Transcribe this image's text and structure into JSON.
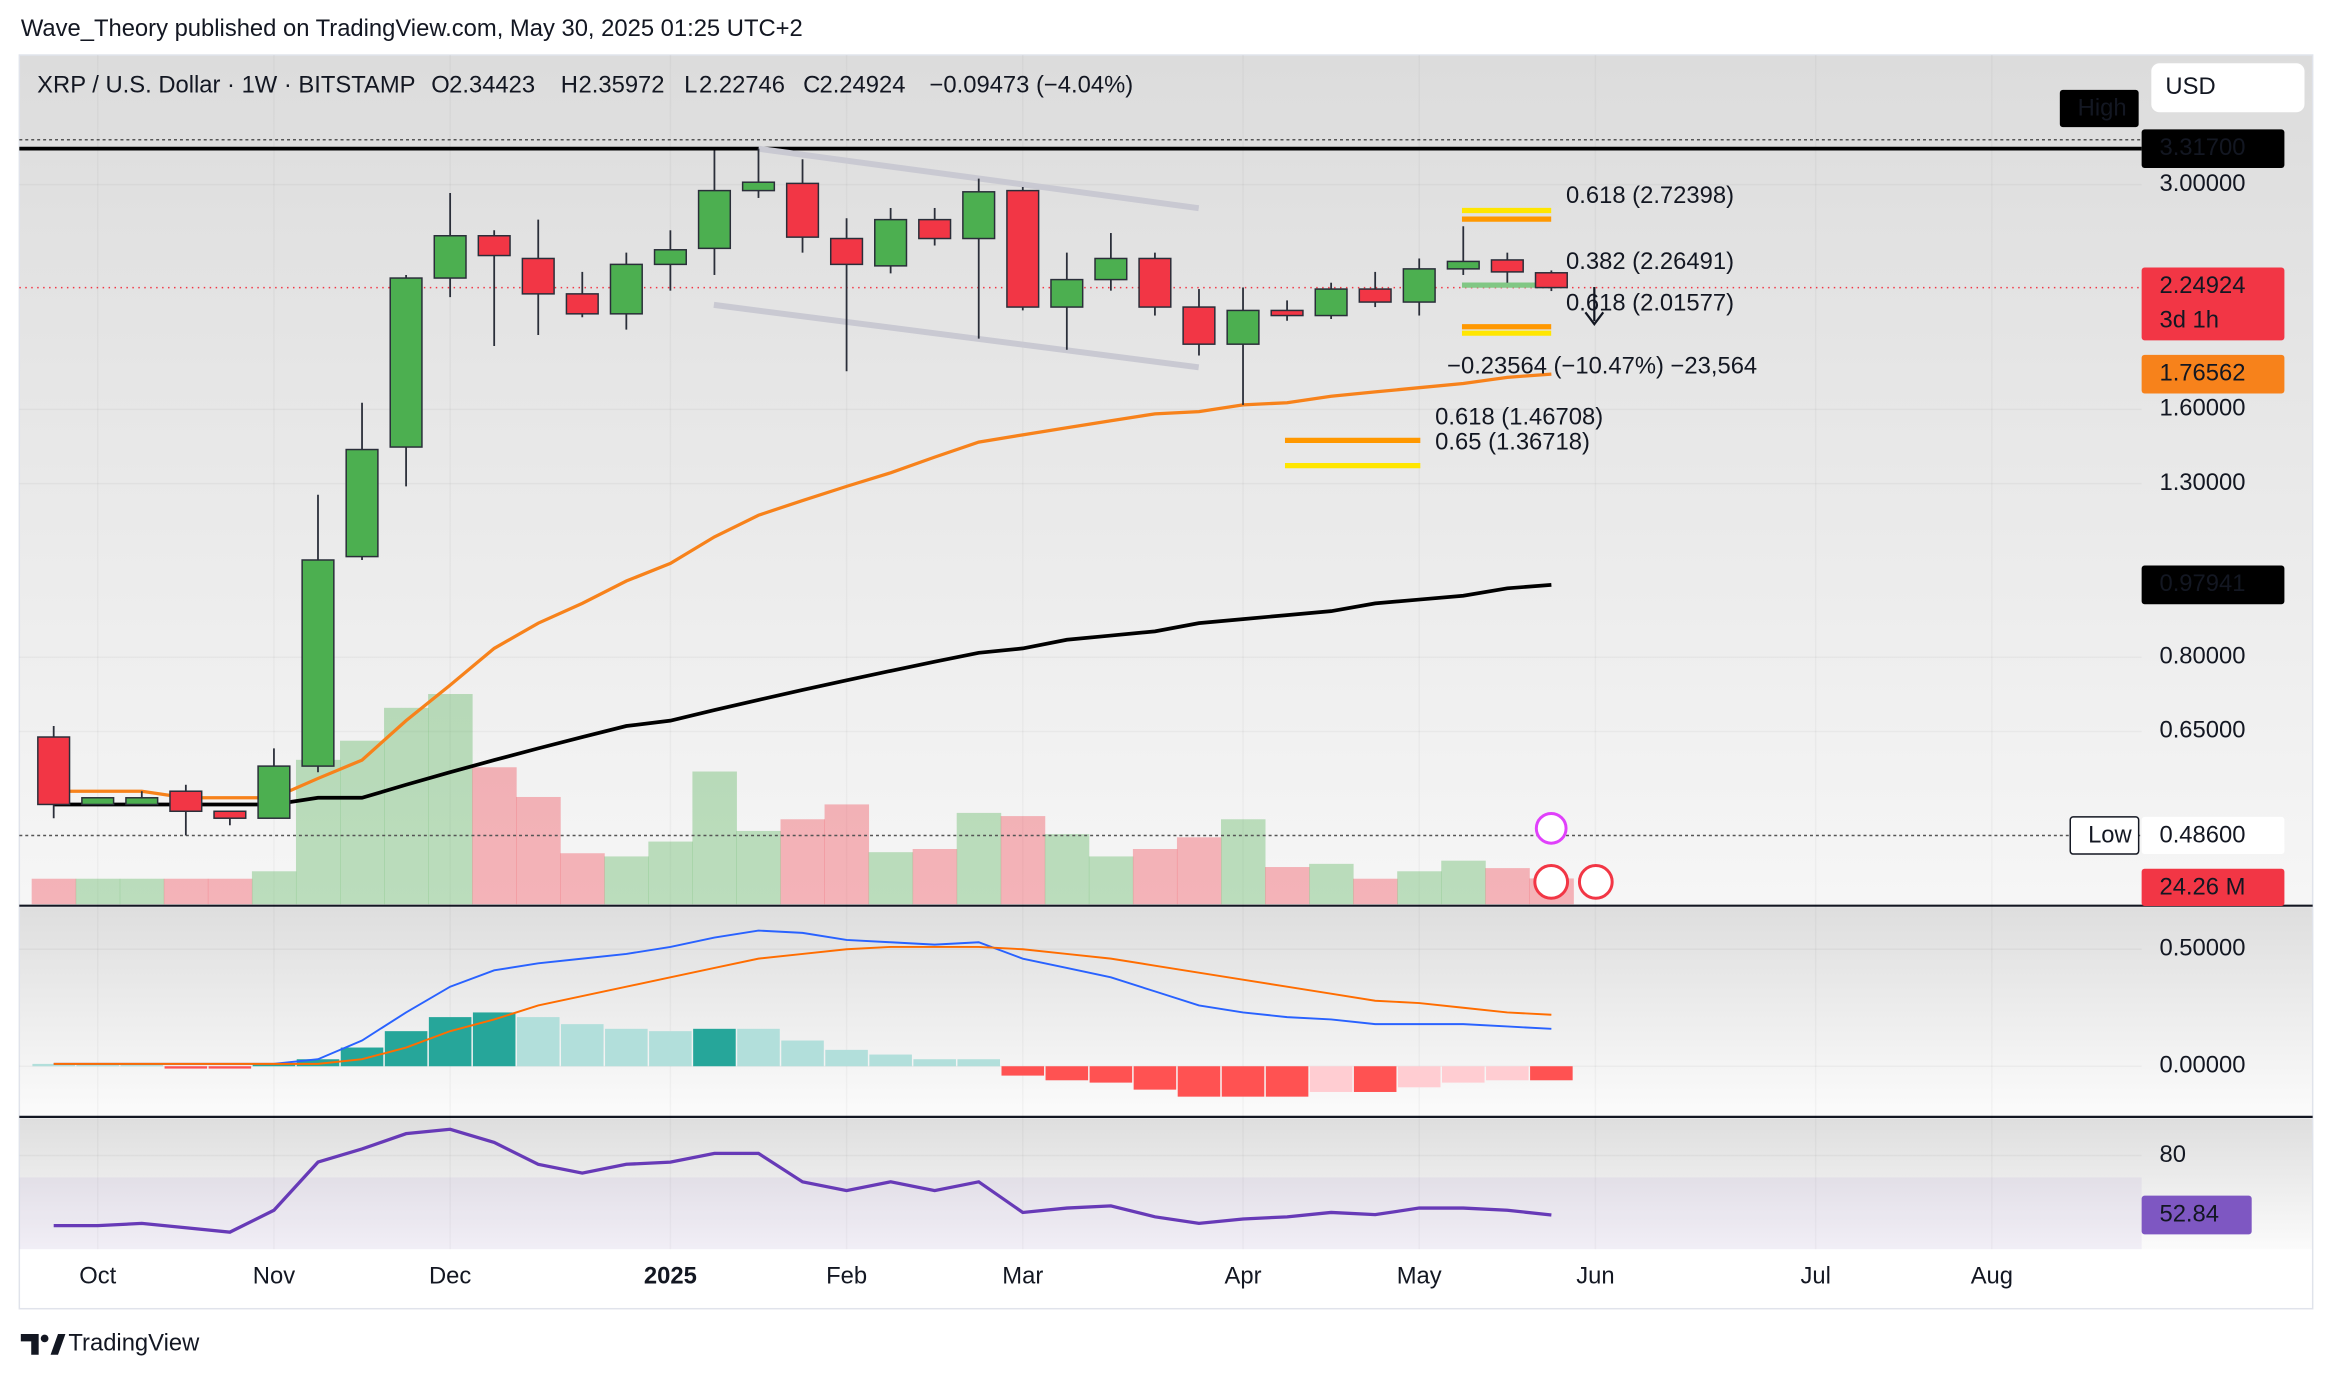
{
  "header": {
    "publisher": "Wave_Theory published on TradingView.com, May 30, 2025 01:25 UTC+2"
  },
  "chart_data": {
    "type": "candlestick",
    "symbol": "XRP / U.S. Dollar · 1W · BITSTAMP",
    "ohlc_keys": [
      "O",
      "H",
      "L",
      "C"
    ],
    "change": "−0.09473 (−4.04%)",
    "currency": "USD",
    "x": [
      0,
      1,
      2,
      3,
      4,
      5,
      6,
      7,
      8,
      9,
      10,
      11,
      12,
      13,
      14,
      15,
      16,
      17,
      18,
      19,
      20,
      21,
      22,
      23,
      24,
      25,
      26,
      27,
      28,
      29,
      30,
      31,
      32,
      33,
      34
    ],
    "xlim": [
      -0.78,
      47.4
    ],
    "xticks": [
      {
        "value": 1,
        "label": "Oct"
      },
      {
        "value": 5,
        "label": "Nov"
      },
      {
        "value": 9,
        "label": "Dec"
      },
      {
        "value": 14,
        "label": "2025"
      },
      {
        "value": 18,
        "label": "Feb"
      },
      {
        "value": 22,
        "label": "Mar"
      },
      {
        "value": 27,
        "label": "Apr"
      },
      {
        "value": 31,
        "label": "May"
      },
      {
        "value": 35,
        "label": "Jun"
      },
      {
        "value": 40,
        "label": "Jul"
      },
      {
        "value": 44,
        "label": "Aug"
      }
    ],
    "open": [
      0.64,
      0.53,
      0.53,
      0.55,
      0.52,
      0.51,
      0.59,
      1.06,
      1.44,
      2.31,
      2.6,
      2.44,
      2.21,
      2.09,
      2.4,
      2.51,
      2.95,
      3.01,
      2.58,
      2.39,
      2.72,
      2.58,
      2.95,
      2.13,
      2.3,
      2.44,
      2.13,
      1.92,
      2.11,
      2.08,
      2.24,
      2.16,
      2.37,
      2.43,
      2.34423
    ],
    "high": [
      0.66,
      0.54,
      0.55,
      0.56,
      0.52,
      0.62,
      1.26,
      1.63,
      2.33,
      2.93,
      2.64,
      2.72,
      2.35,
      2.48,
      2.64,
      3.3,
      3.317,
      3.22,
      2.73,
      2.81,
      2.81,
      3.05,
      2.98,
      2.48,
      2.62,
      2.48,
      2.24,
      2.25,
      2.17,
      2.28,
      2.35,
      2.44,
      2.67,
      2.48,
      2.35972
    ],
    "low": [
      0.51,
      0.53,
      0.53,
      0.486,
      0.5,
      0.51,
      0.58,
      1.05,
      1.29,
      2.19,
      1.91,
      1.97,
      2.07,
      2.0,
      2.23,
      2.33,
      2.89,
      2.48,
      1.78,
      2.34,
      2.53,
      1.95,
      2.11,
      1.89,
      2.23,
      2.08,
      1.86,
      1.62,
      2.05,
      2.06,
      2.13,
      2.08,
      2.33,
      2.28,
      2.22746
    ],
    "close": [
      0.53,
      0.54,
      0.54,
      0.52,
      0.51,
      0.59,
      1.05,
      1.43,
      2.31,
      2.6,
      2.46,
      2.21,
      2.09,
      2.4,
      2.5,
      2.95,
      3.02,
      2.59,
      2.4,
      2.72,
      2.58,
      2.94,
      2.13,
      2.3,
      2.44,
      2.13,
      1.92,
      2.11,
      2.08,
      2.24,
      2.16,
      2.37,
      2.42,
      2.35,
      2.24924
    ],
    "up_color": "#4caf50",
    "down_color": "#f23645",
    "log_scale": true,
    "ylim": [
      0.401,
      4.31
    ],
    "yticks": [
      {
        "value": 3,
        "label": "3.00000"
      },
      {
        "value": 1.6,
        "label": "1.60000"
      },
      {
        "value": 1.3,
        "label": "1.30000"
      },
      {
        "value": 0.8,
        "label": "0.80000"
      },
      {
        "value": 0.65,
        "label": "0.65000"
      }
    ],
    "high_level": {
      "value": 3.317,
      "label": "3.31700",
      "tag": "High"
    },
    "low_level": {
      "value": 0.486,
      "label": "0.48600",
      "tag": "Low"
    },
    "countdown": "3d 1h",
    "ema": {
      "color": "#f7821b",
      "values": [
        0.55,
        0.55,
        0.55,
        0.54,
        0.54,
        0.54,
        0.57,
        0.6,
        0.67,
        0.74,
        0.82,
        0.88,
        0.93,
        0.99,
        1.04,
        1.12,
        1.19,
        1.24,
        1.29,
        1.34,
        1.4,
        1.46,
        1.49,
        1.52,
        1.55,
        1.58,
        1.59,
        1.62,
        1.63,
        1.66,
        1.68,
        1.7,
        1.72,
        1.75,
        1.76562
      ]
    },
    "sma": {
      "color": "#000000",
      "values": [
        0.53,
        0.53,
        0.53,
        0.53,
        0.53,
        0.53,
        0.54,
        0.54,
        0.56,
        0.58,
        0.6,
        0.62,
        0.64,
        0.66,
        0.67,
        0.69,
        0.71,
        0.73,
        0.75,
        0.77,
        0.79,
        0.81,
        0.82,
        0.84,
        0.85,
        0.86,
        0.88,
        0.89,
        0.9,
        0.91,
        0.93,
        0.94,
        0.95,
        0.97,
        0.97941
      ]
    },
    "fib_upper": [
      {
        "price": 2.79,
        "color": "#ffe600"
      },
      {
        "label": "0.618 (2.72398)",
        "price": 2.72398,
        "color": "#ff9800"
      },
      {
        "label": "0.382 (2.26491)",
        "price": 2.26491,
        "color": "#81c784"
      },
      {
        "label": "0.618 (2.01577)",
        "price": 2.01577,
        "color": "#ff9800"
      },
      {
        "price": 1.98,
        "color": "#ffe600"
      }
    ],
    "fib_lower": [
      {
        "label": "0.618 (1.46708)",
        "price": 1.46708,
        "color": "#ff9800"
      },
      {
        "label": "0.65 (1.36718)",
        "price": 1.36718,
        "color": "#ffe600"
      }
    ],
    "measure": "−0.23564 (−10.47%) −23,564",
    "volume": {
      "ylim": [
        0,
        800
      ],
      "badge": "24.26 M",
      "values": [
        24,
        24,
        24,
        24,
        24,
        31,
        136,
        154,
        185,
        198,
        129,
        101,
        48,
        45,
        59,
        125,
        69,
        80,
        94,
        49,
        52,
        86,
        83,
        66,
        45,
        52,
        63,
        80,
        35,
        38,
        24,
        31,
        41,
        34,
        24.26
      ]
    },
    "macd": {
      "ylim": [
        -0.21,
        0.68
      ],
      "yticks": [
        {
          "value": 0.5,
          "label": "0.50000"
        },
        {
          "value": 0,
          "label": "0.00000"
        }
      ],
      "macd_color": "#2962ff",
      "signal_color": "#ff6d00",
      "macd": [
        0.01,
        0.01,
        0.01,
        0.01,
        0.01,
        0.01,
        0.03,
        0.11,
        0.23,
        0.34,
        0.41,
        0.44,
        0.46,
        0.48,
        0.51,
        0.55,
        0.58,
        0.57,
        0.54,
        0.53,
        0.52,
        0.53,
        0.46,
        0.42,
        0.38,
        0.32,
        0.26,
        0.23,
        0.21,
        0.2,
        0.18,
        0.18,
        0.18,
        0.17,
        0.16
      ],
      "signal": [
        0.01,
        0.01,
        0.01,
        0.01,
        0.01,
        0.01,
        0.01,
        0.03,
        0.08,
        0.15,
        0.2,
        0.26,
        0.3,
        0.34,
        0.38,
        0.42,
        0.46,
        0.48,
        0.5,
        0.51,
        0.51,
        0.51,
        0.5,
        0.48,
        0.46,
        0.43,
        0.4,
        0.37,
        0.34,
        0.31,
        0.28,
        0.27,
        0.25,
        0.23,
        0.22
      ],
      "histogram": [
        0.01,
        0.01,
        0.01,
        -0.01,
        -0.01,
        0.01,
        0.03,
        0.08,
        0.15,
        0.21,
        0.23,
        0.21,
        0.18,
        0.16,
        0.15,
        0.16,
        0.16,
        0.11,
        0.07,
        0.05,
        0.03,
        0.03,
        -0.04,
        -0.06,
        -0.07,
        -0.1,
        -0.13,
        -0.13,
        -0.13,
        -0.11,
        -0.11,
        -0.09,
        -0.07,
        -0.06,
        -0.06
      ]
    },
    "rsi": {
      "ylim": [
        37.2,
        97
      ],
      "yticks": [
        80
      ],
      "band": [
        30,
        70
      ],
      "color": "#673ab7",
      "values": [
        48,
        48,
        49,
        47,
        45,
        55,
        77,
        83,
        90,
        92,
        86,
        76,
        72,
        76,
        77,
        81,
        81,
        68,
        64,
        68,
        64,
        68,
        54,
        56,
        57,
        52,
        49,
        51,
        52,
        54,
        53,
        56,
        56,
        55,
        52.84
      ]
    }
  },
  "footer": {
    "brand": "TradingView"
  }
}
